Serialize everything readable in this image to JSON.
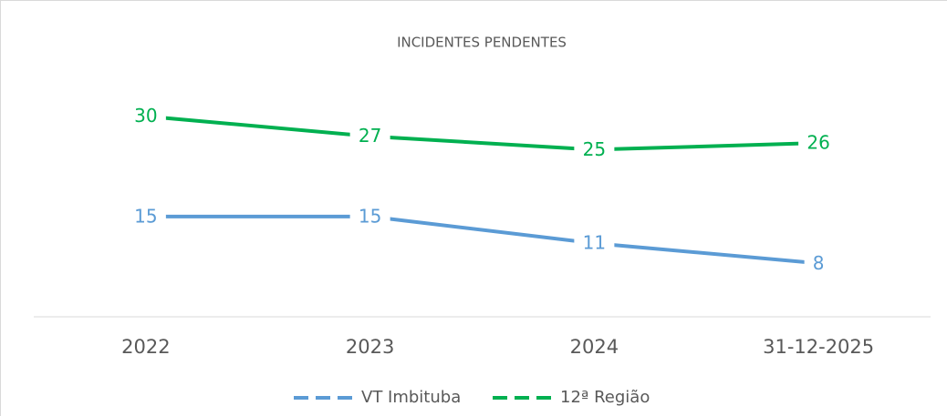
{
  "chart_data": {
    "type": "line",
    "title": "INCIDENTES PENDENTES",
    "categories": [
      "2022",
      "2023",
      "2024",
      "31-12-2025"
    ],
    "series": [
      {
        "name": "VT Imbituba",
        "color": "#5b9bd5",
        "values": [
          15,
          15,
          11,
          8
        ]
      },
      {
        "name": "12ª Região",
        "color": "#00b050",
        "values": [
          30,
          27,
          25,
          26
        ]
      }
    ],
    "ylim": [
      0,
      35
    ],
    "legend": "bottom"
  }
}
